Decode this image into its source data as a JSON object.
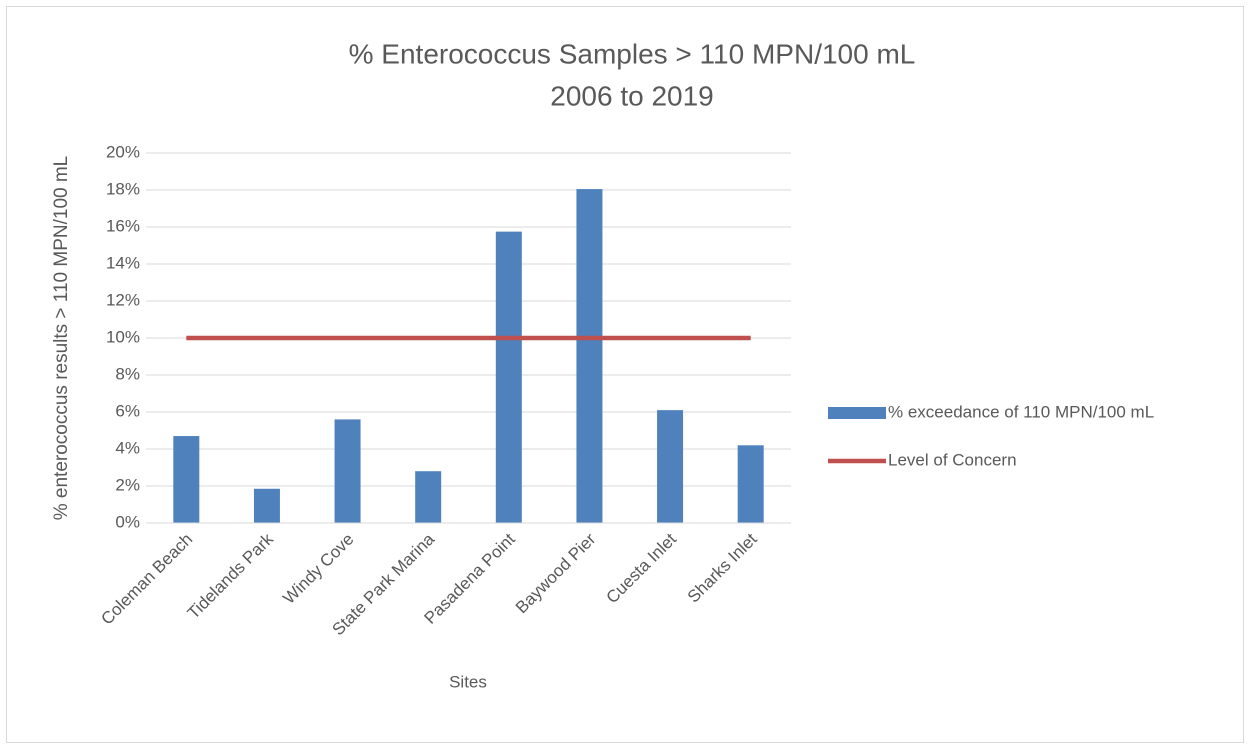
{
  "chart_data": {
    "type": "combo",
    "title": "% Enterococcus Samples > 110 MPN/100 mL",
    "subtitle": "2006 to 2019",
    "x_label": "Sites",
    "y_label": "% enterococcus results > 110 MPN/100 mL",
    "categories": [
      "Coleman Beach",
      "Tidelands Park",
      "Windy Cove",
      "State Park Marina",
      "Pasadena Point",
      "Baywood Pier",
      "Cuesta Inlet",
      "Sharks Inlet"
    ],
    "series": [
      {
        "name": "% exceedance of 110 MPN/100 mL",
        "type": "bar",
        "color": "#4f81bd",
        "values": [
          4.7,
          1.85,
          5.6,
          2.8,
          15.75,
          18.05,
          6.1,
          4.2
        ]
      },
      {
        "name": "Level of Concern",
        "type": "line",
        "color": "#c0504d",
        "values": [
          10,
          10,
          10,
          10,
          10,
          10,
          10,
          10
        ]
      }
    ],
    "ylim": [
      0,
      20
    ],
    "yticks": [
      {
        "value": 0,
        "label": "0%"
      },
      {
        "value": 2,
        "label": "2%"
      },
      {
        "value": 4,
        "label": "4%"
      },
      {
        "value": 6,
        "label": "6%"
      },
      {
        "value": 8,
        "label": "8%"
      },
      {
        "value": 10,
        "label": "10%"
      },
      {
        "value": 12,
        "label": "12%"
      },
      {
        "value": 14,
        "label": "14%"
      },
      {
        "value": 16,
        "label": "16%"
      },
      {
        "value": 18,
        "label": "18%"
      },
      {
        "value": 20,
        "label": "20%"
      }
    ],
    "grid": true,
    "legend": "right"
  }
}
